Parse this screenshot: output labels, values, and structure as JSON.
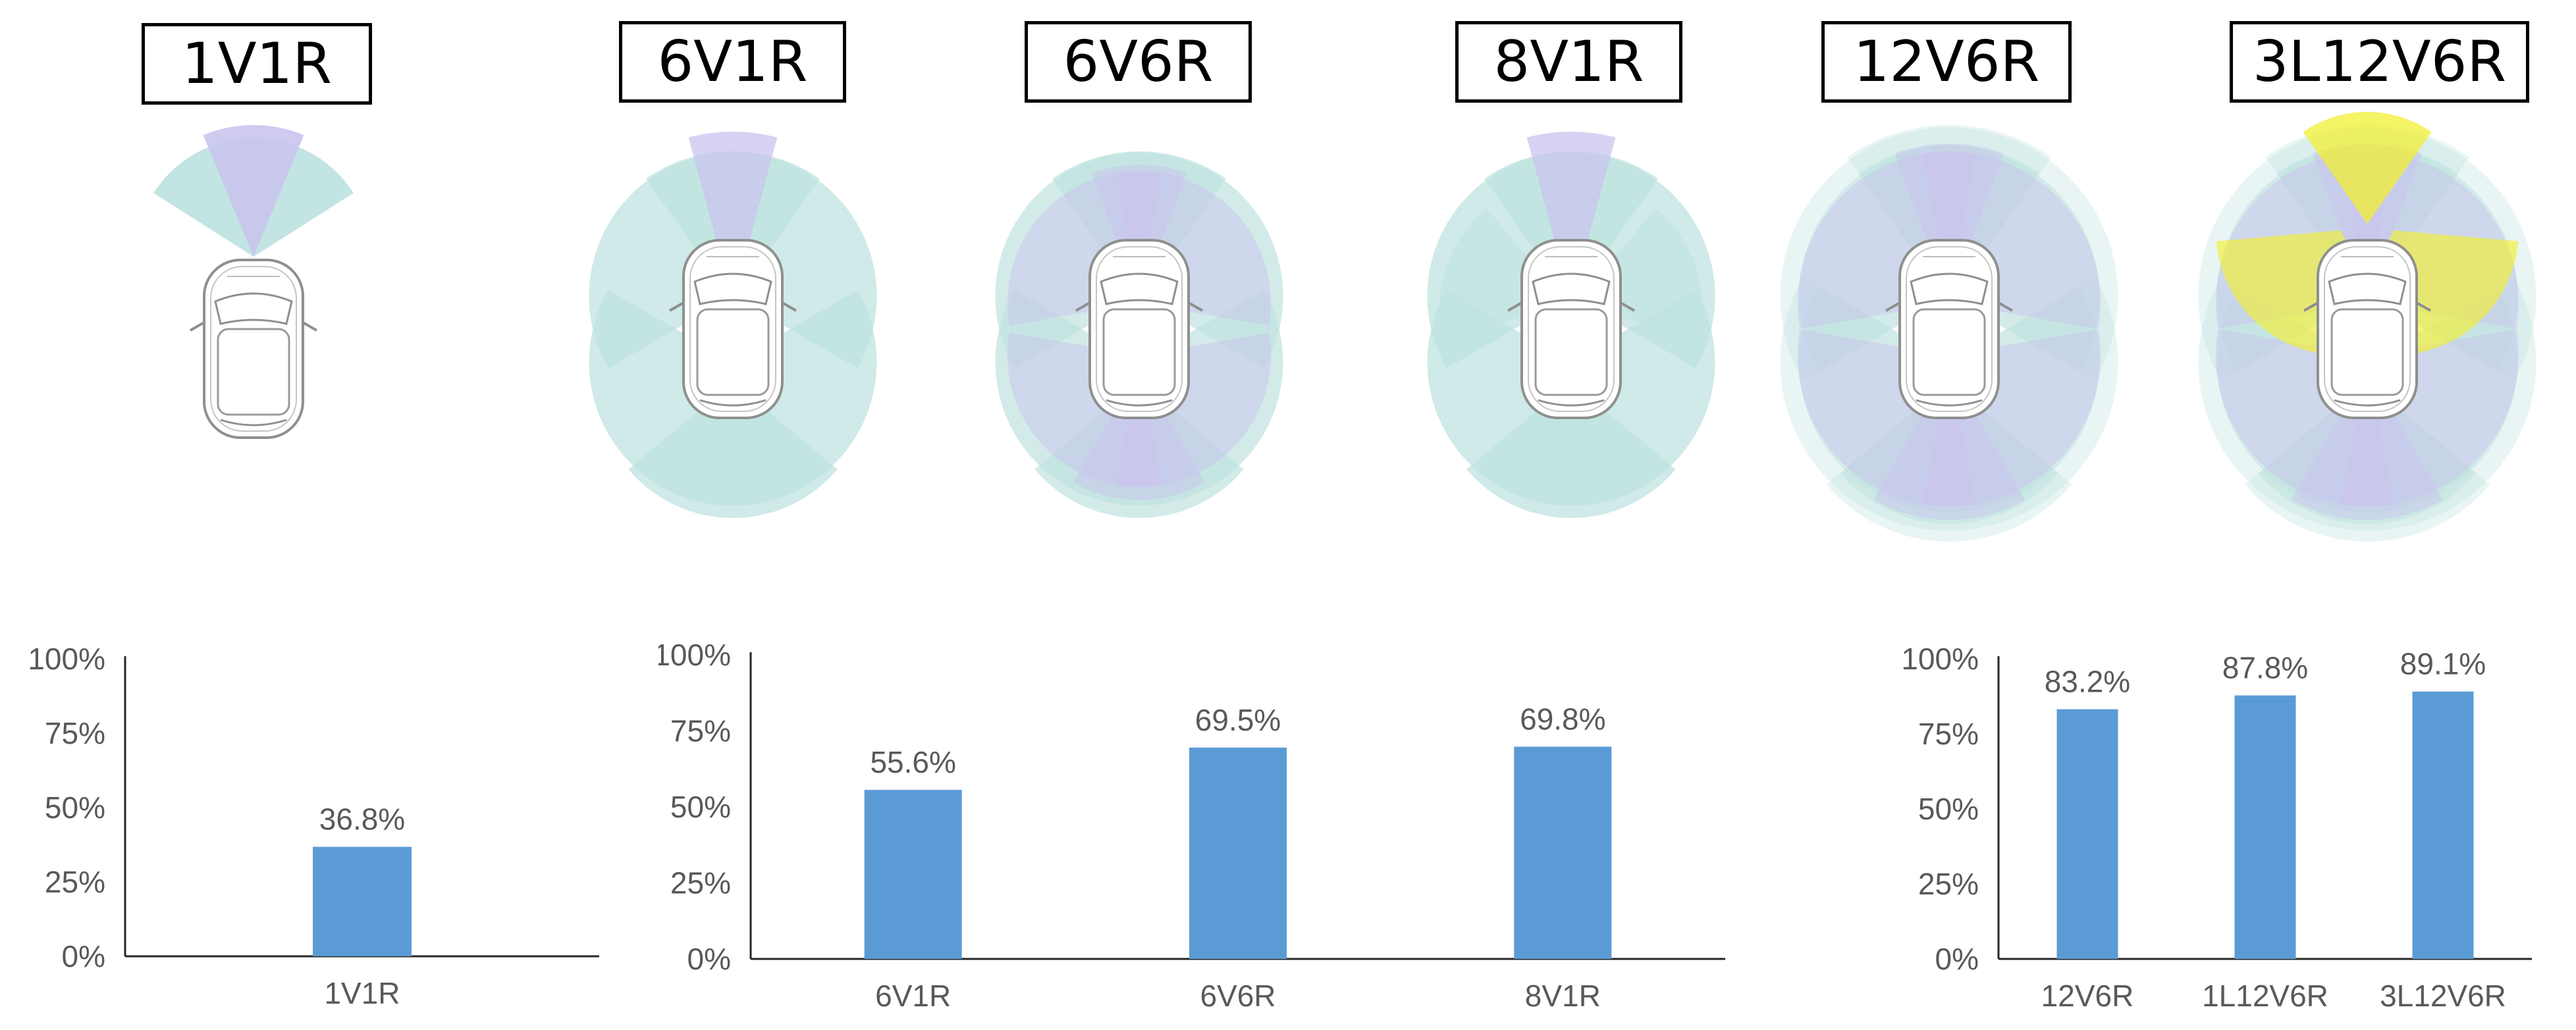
{
  "configurations": [
    {
      "label": "1V1R"
    },
    {
      "label": "6V1R"
    },
    {
      "label": "6V6R"
    },
    {
      "label": "8V1R"
    },
    {
      "label": "12V6R"
    },
    {
      "label": "3L12V6R"
    }
  ],
  "colors": {
    "bar": "#5B9BD5",
    "camera_fov": "#bfe3e0",
    "radar_fov": "#c9c4ee",
    "lidar_fov": "#f2ef33",
    "axis_text": "#595959",
    "axis_line": "#262626"
  },
  "chart_data": [
    {
      "type": "bar",
      "categories": [
        "1V1R"
      ],
      "values": [
        36.8
      ],
      "data_labels": [
        "36.8%"
      ],
      "ylim": [
        0,
        100
      ],
      "yticks": [
        "0%",
        "25%",
        "50%",
        "75%",
        "100%"
      ],
      "title": "",
      "xlabel": "",
      "ylabel": ""
    },
    {
      "type": "bar",
      "categories": [
        "6V1R",
        "6V6R",
        "8V1R"
      ],
      "values": [
        55.6,
        69.5,
        69.8
      ],
      "data_labels": [
        "55.6%",
        "69.5%",
        "69.8%"
      ],
      "ylim": [
        0,
        100
      ],
      "yticks": [
        "0%",
        "25%",
        "50%",
        "75%",
        "100%"
      ],
      "title": "",
      "xlabel": "",
      "ylabel": ""
    },
    {
      "type": "bar",
      "categories": [
        "12V6R",
        "1L12V6R",
        "3L12V6R"
      ],
      "values": [
        83.2,
        87.8,
        89.1
      ],
      "data_labels": [
        "83.2%",
        "87.8%",
        "89.1%"
      ],
      "ylim": [
        0,
        100
      ],
      "yticks": [
        "0%",
        "25%",
        "50%",
        "75%",
        "100%"
      ],
      "title": "",
      "xlabel": "",
      "ylabel": ""
    }
  ]
}
